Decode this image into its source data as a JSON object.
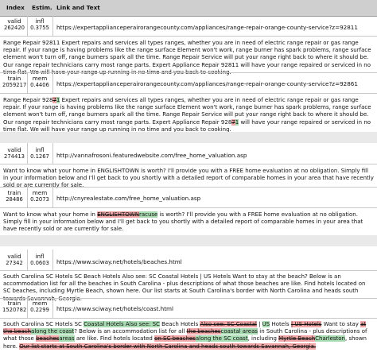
{
  "header": {
    "index": "Index",
    "estim": "Estim.",
    "link": "Link and Text"
  },
  "labels": {
    "valid": "valid",
    "train": "train",
    "infl": "infl",
    "mem": "mem"
  },
  "groups": [
    {
      "a": {
        "index": "262420",
        "estim": "0.3755",
        "url": "https://expertapplianceperairorangecounty.com/appliances/range-repair-orange-county-service?z=92811",
        "text": "Range Repair 92811 Expert repairs and services all types ranges, whether you are in need of electric range repair or gas range repair. If your range is having problems like the range surface Element won't work, range burner has spark problems, range surface element won't turn off, range burners spark all the time. Range Repair Service will put your range right back to where it should be. Our range repair technicians carry most range parts. Expert Appliance Repair 92811 will have your range repaired or serviced in no time flat. We will have your range up running in no time and you back to cooking."
      },
      "b": {
        "index": "2059217",
        "estim": "0.4406",
        "url": "https://expertapplianceperairorangecounty.com/appliances/range-repair-orange-county-service?z=92861",
        "t1": "Range Repair 928",
        "t2": "7",
        "t3": "1",
        "t4": " Expert repairs and services all types ranges, whether you are in need of electric range repair or gas range repair. If your range is having problems like the range surface Element won't work, range burner has spark problems, range surface element won't turn off, range burners spark all the time. Range Repair Service will put your range right back to where it should be. Our range repair technicians carry most range parts. Expert Appliance Repair 928",
        "t5": "7",
        "t6": "1",
        "t7": " will have your range repaired or serviced in no time flat. We will have your range up running in no time and you back to cooking."
      }
    },
    {
      "a": {
        "index": "274413",
        "estim": "0.1267",
        "url": "http://vannafrosoni.featuredwebsite.com/free_home_valuation.asp",
        "text": "Want to know what your home in ENGLISHTOWN is worth? I'll provide you with a FREE home evaluation at no obligation. Simply fill in your information below and I'll get back to you shortly with a detailed report of comparable homes in your area that have recently sold or are currently for sale."
      },
      "b": {
        "index": "28486",
        "estim": "0.2073",
        "url": "http://cnyrealestate.com/free_home_valuation.asp",
        "t1": "Want to know what your home in ",
        "t2": "ENGLIS",
        "t3": "HTOWN",
        "t4": "racuse",
        "t5": " is worth? I'll provide you with a FREE home evaluation at no obligation. Simply fill in your information below and I'll get back to you shortly with a detailed report of comparable homes in your area that have recently sold or are currently for sale."
      }
    },
    {
      "a": {
        "index": "27342",
        "estim": "0.0603",
        "url": "https://www.sciway.net/hotels/beaches.html",
        "text": "South Carolina SC Hotels SC Beach Hotels Also see: SC Coastal Hotels | US Hotels Want to stay at the beach? Below is an accommodation list for all the beaches in South Carolina - plus descriptions of what those beaches are like. Find hotels located on SC beaches, including Myrtle Beach, shown here. Our list starts at South Carolina's border with North Carolina and heads south towards Savannah, Georgia."
      },
      "b": {
        "index": "1520782",
        "estim": "0.2299",
        "url": "https://www.sciway.net/hotels/coast.html",
        "p1": "South Carolina SC Hotels SC ",
        "p2": "Coastal Hotels Also see: SC",
        "p3": " Beach Hotels ",
        "p4": "Also see: SC Coastal",
        "p5": " | ",
        "p6": "US",
        "p7": " Hotels ",
        "p8": "| US Hotels",
        "p9": " Want to stay ",
        "p10": "at the beach",
        "p11": "along the coast",
        "p12": "? Below is an accommodation list for all ",
        "p13": "the beaches",
        "p14": "coastal areas",
        "p15": " in South Carolina - plus descriptions of what those ",
        "p16": "beaches",
        "p17": "areas",
        "p18": " are like. Find hotels located ",
        "p19": "on SC beaches",
        "p20": "along the SC coast",
        "p21": ", in",
        "p22": "cluding ",
        "p23": "Myrtle Beach",
        "p24": "Charleston",
        "p25": ", shown here. ",
        "p26": "Our list starts at South Carolina's border with North Carolina and heads south towards Savannah, Georgia.",
        "p27": ""
      }
    }
  ]
}
